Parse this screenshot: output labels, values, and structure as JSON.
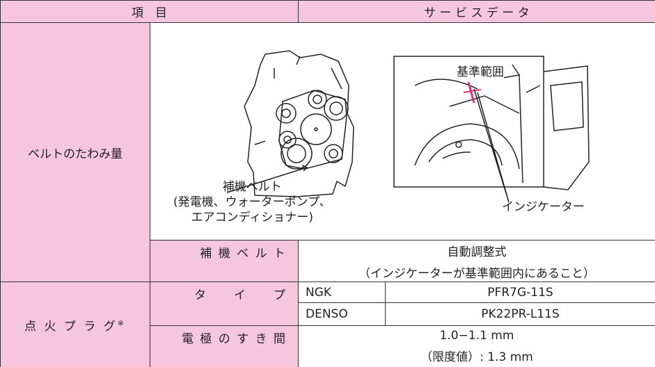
{
  "header": {
    "item": "項　目",
    "data": "サ ー ビ ス デ ー タ"
  },
  "belt": {
    "label": "ベルトのたわみ量",
    "diagram": {
      "belt_label": [
        "補機ベルト",
        "(発電機、ウォーターポンプ、",
        "エアコンディショナー)"
      ],
      "range_label": "基準範囲",
      "indicator_label": "インジケーター"
    },
    "row": {
      "label": "補 機 ベ ル ト",
      "lines": [
        "自動調整式",
        "（インジケーターが基準範囲内にあること）"
      ]
    }
  },
  "plug": {
    "label": "点 火 プ ラ グ",
    "mark": "※",
    "type": {
      "label": "タ　　イ　　プ",
      "rows": [
        [
          "NGK",
          "PFR7G-11S"
        ],
        [
          "DENSO",
          "PK22PR-L11S"
        ]
      ]
    },
    "gap": {
      "label": "電 極 の す き 間",
      "lines": [
        "1.0−1.1 mm",
        "（限度値）: 1.3 mm"
      ]
    }
  }
}
